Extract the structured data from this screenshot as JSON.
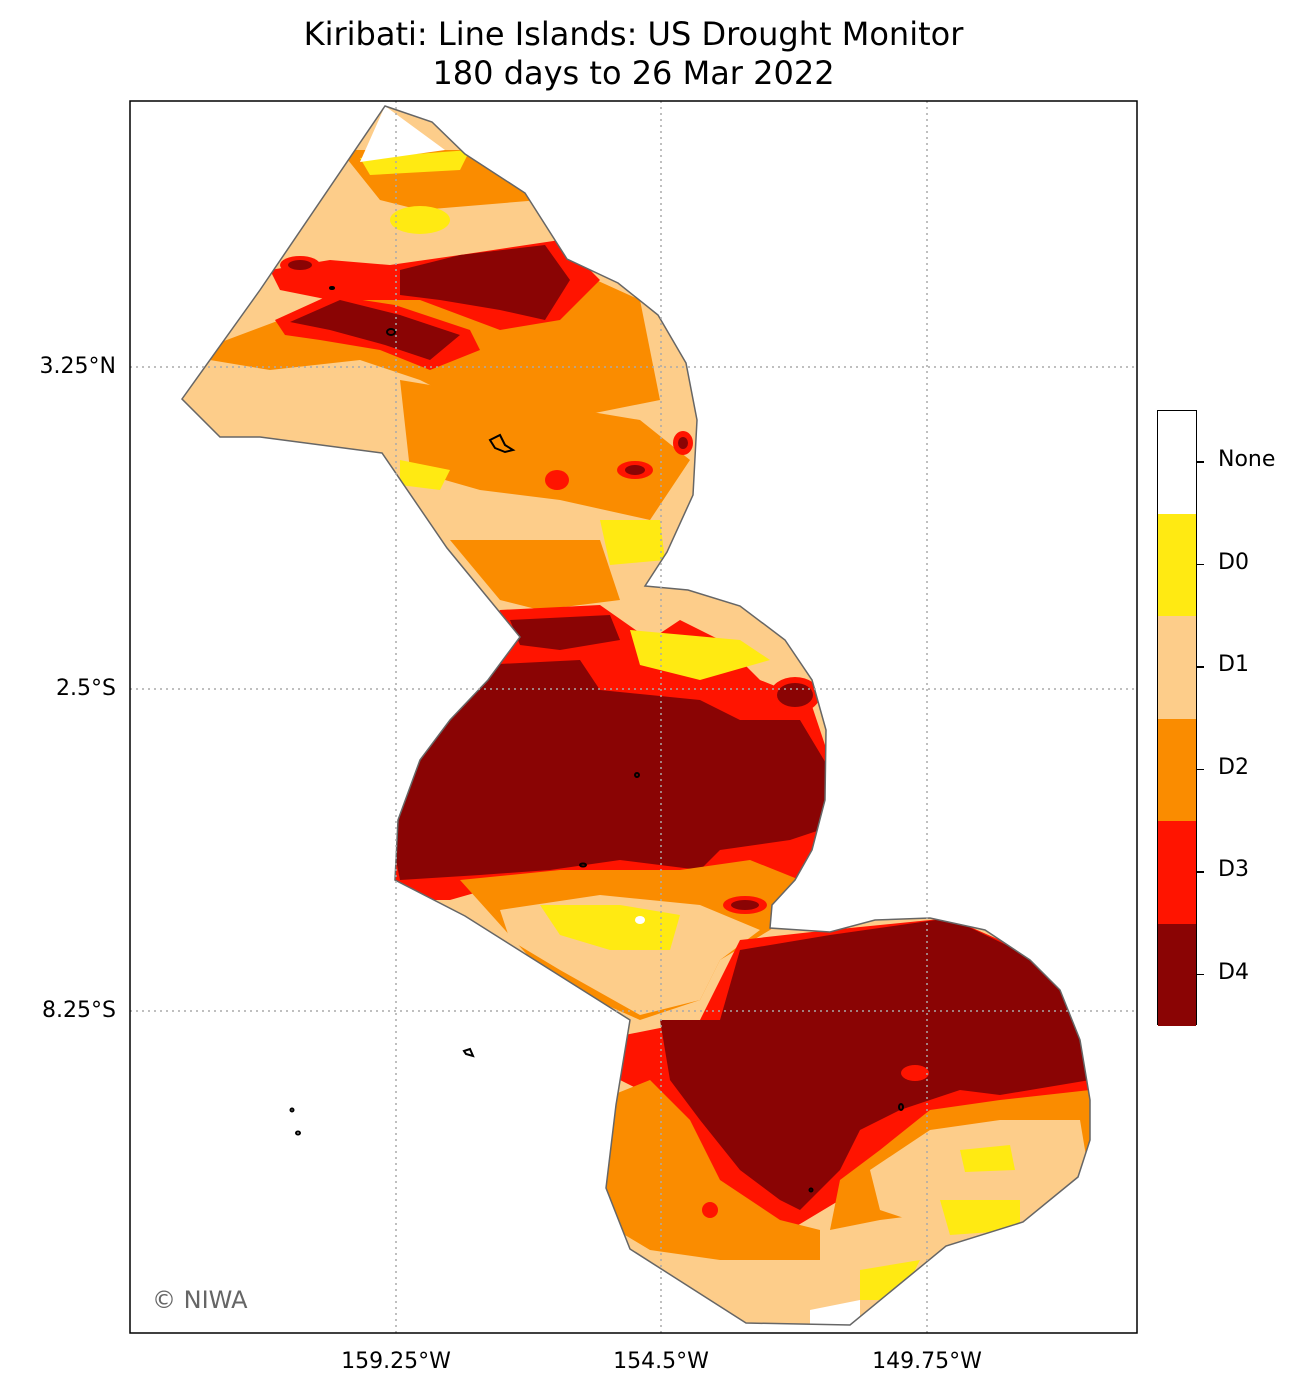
{
  "title": {
    "line1": "Kiribati: Line Islands: US Drought Monitor",
    "line2": "180 days to 26 Mar 2022"
  },
  "axes": {
    "lat_ticks": [
      "3.25°N",
      "2.5°S",
      "8.25°S"
    ],
    "lon_ticks": [
      "159.25°W",
      "154.5°W",
      "149.75°W"
    ],
    "grid": "dotted"
  },
  "credit": "© NIWA",
  "legend": {
    "placement": "right",
    "categories": [
      {
        "label": "None",
        "color": "#ffffff"
      },
      {
        "label": "D0",
        "color": "#ffea12"
      },
      {
        "label": "D1",
        "color": "#fdcd8a"
      },
      {
        "label": "D2",
        "color": "#fa8c00"
      },
      {
        "label": "D3",
        "color": "#ff1400"
      },
      {
        "label": "D4",
        "color": "#8a0404"
      }
    ]
  },
  "colors": {
    "boundary": "#666666",
    "island": "#000000"
  }
}
